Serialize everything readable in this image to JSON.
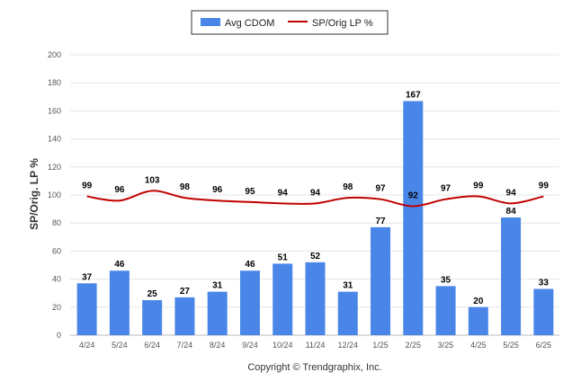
{
  "chart_data": {
    "type": "bar",
    "categories": [
      "4/24",
      "5/24",
      "6/24",
      "7/24",
      "8/24",
      "9/24",
      "10/24",
      "11/24",
      "12/24",
      "1/25",
      "2/25",
      "3/25",
      "4/25",
      "5/25",
      "6/25"
    ],
    "series": [
      {
        "name": "Avg CDOM",
        "type": "bar",
        "values": [
          37,
          46,
          25,
          27,
          31,
          46,
          51,
          52,
          31,
          77,
          167,
          35,
          20,
          84,
          33
        ]
      },
      {
        "name": "SP/Orig LP %",
        "type": "line",
        "values": [
          99,
          96,
          103,
          98,
          96,
          95,
          94,
          94,
          98,
          97,
          92,
          97,
          99,
          94,
          99
        ]
      }
    ],
    "ylabel": "SP/Orig. LP %",
    "ylim": [
      0,
      200
    ],
    "yticks": [
      0,
      20,
      40,
      60,
      80,
      100,
      120,
      140,
      160,
      180,
      200
    ],
    "grid": true,
    "legend_position": "top-center",
    "colors": {
      "bar": "#4a86e8",
      "line": "#c00000",
      "grid": "#e6e6e6"
    }
  },
  "footer": {
    "copyright": "Copyright © Trendgraphix, Inc."
  }
}
